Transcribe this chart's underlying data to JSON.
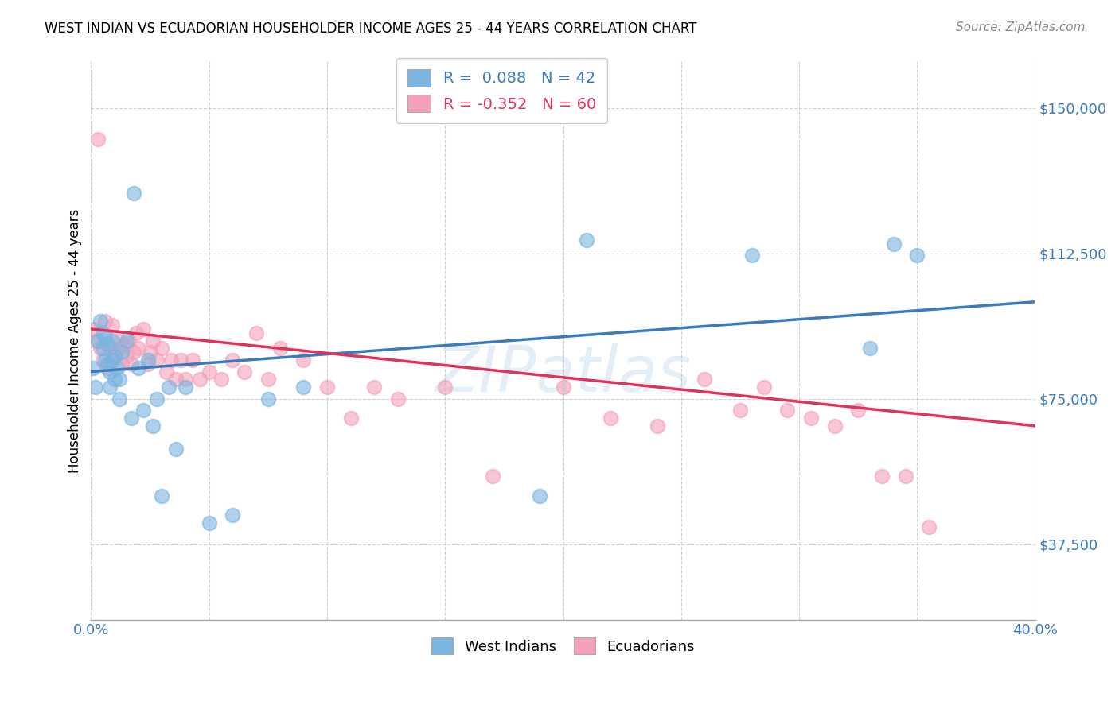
{
  "title": "WEST INDIAN VS ECUADORIAN HOUSEHOLDER INCOME AGES 25 - 44 YEARS CORRELATION CHART",
  "source": "Source: ZipAtlas.com",
  "ylabel": "Householder Income Ages 25 - 44 years",
  "west_indian_R": 0.088,
  "west_indian_N": 42,
  "ecuadorian_R": -0.352,
  "ecuadorian_N": 60,
  "blue_color": "#7ab4e0",
  "pink_color": "#f4a0b8",
  "blue_line_color": "#3a7bbf",
  "pink_line_color": "#e0325a",
  "blue_text_color": "#3a7bbf",
  "pink_text_color": "#e0325a",
  "background_color": "#ffffff",
  "grid_color": "#cccccc",
  "xlim": [
    0.0,
    0.4
  ],
  "ylim": [
    18000,
    162000
  ],
  "yticks": [
    37500,
    75000,
    112500,
    150000
  ],
  "ytick_labels": [
    "$37,500",
    "$75,000",
    "$112,500",
    "$150,000"
  ],
  "xticks": [
    0.0,
    0.05,
    0.1,
    0.15,
    0.2,
    0.25,
    0.3,
    0.35,
    0.4
  ],
  "xtick_labels": [
    "0.0%",
    "",
    "",
    "",
    "",
    "",
    "",
    "",
    "40.0%"
  ],
  "wi_trend_x": [
    0.0,
    0.4
  ],
  "wi_trend_y": [
    82000,
    100000
  ],
  "ec_trend_x": [
    0.0,
    0.4
  ],
  "ec_trend_y": [
    93000,
    68000
  ],
  "west_indian_x": [
    0.001,
    0.002,
    0.003,
    0.004,
    0.005,
    0.005,
    0.006,
    0.006,
    0.007,
    0.007,
    0.008,
    0.008,
    0.009,
    0.009,
    0.01,
    0.01,
    0.011,
    0.012,
    0.012,
    0.013,
    0.015,
    0.017,
    0.018,
    0.02,
    0.022,
    0.024,
    0.026,
    0.028,
    0.03,
    0.033,
    0.036,
    0.04,
    0.05,
    0.06,
    0.075,
    0.09,
    0.19,
    0.21,
    0.28,
    0.33,
    0.34,
    0.35
  ],
  "west_indian_y": [
    83000,
    78000,
    90000,
    95000,
    88000,
    92000,
    85000,
    91000,
    84000,
    89000,
    82000,
    78000,
    85000,
    90000,
    80000,
    86000,
    83000,
    75000,
    80000,
    87000,
    90000,
    70000,
    128000,
    83000,
    72000,
    85000,
    68000,
    75000,
    50000,
    78000,
    62000,
    78000,
    43000,
    45000,
    75000,
    78000,
    50000,
    116000,
    112000,
    88000,
    115000,
    112000
  ],
  "ecuadorian_x": [
    0.001,
    0.002,
    0.003,
    0.004,
    0.005,
    0.006,
    0.007,
    0.008,
    0.009,
    0.01,
    0.011,
    0.012,
    0.013,
    0.014,
    0.015,
    0.016,
    0.017,
    0.018,
    0.019,
    0.02,
    0.022,
    0.024,
    0.025,
    0.026,
    0.028,
    0.03,
    0.032,
    0.034,
    0.036,
    0.038,
    0.04,
    0.043,
    0.046,
    0.05,
    0.055,
    0.06,
    0.065,
    0.07,
    0.075,
    0.08,
    0.09,
    0.1,
    0.11,
    0.12,
    0.13,
    0.15,
    0.17,
    0.2,
    0.22,
    0.24,
    0.26,
    0.275,
    0.285,
    0.295,
    0.305,
    0.315,
    0.325,
    0.335,
    0.345,
    0.355
  ],
  "ecuadorian_y": [
    93000,
    90000,
    142000,
    88000,
    85000,
    95000,
    83000,
    88000,
    94000,
    86000,
    91000,
    88000,
    84000,
    89000,
    86000,
    90000,
    84000,
    87000,
    92000,
    88000,
    93000,
    84000,
    87000,
    90000,
    85000,
    88000,
    82000,
    85000,
    80000,
    85000,
    80000,
    85000,
    80000,
    82000,
    80000,
    85000,
    82000,
    92000,
    80000,
    88000,
    85000,
    78000,
    70000,
    78000,
    75000,
    78000,
    55000,
    78000,
    70000,
    68000,
    80000,
    72000,
    78000,
    72000,
    70000,
    68000,
    72000,
    55000,
    55000,
    42000
  ]
}
